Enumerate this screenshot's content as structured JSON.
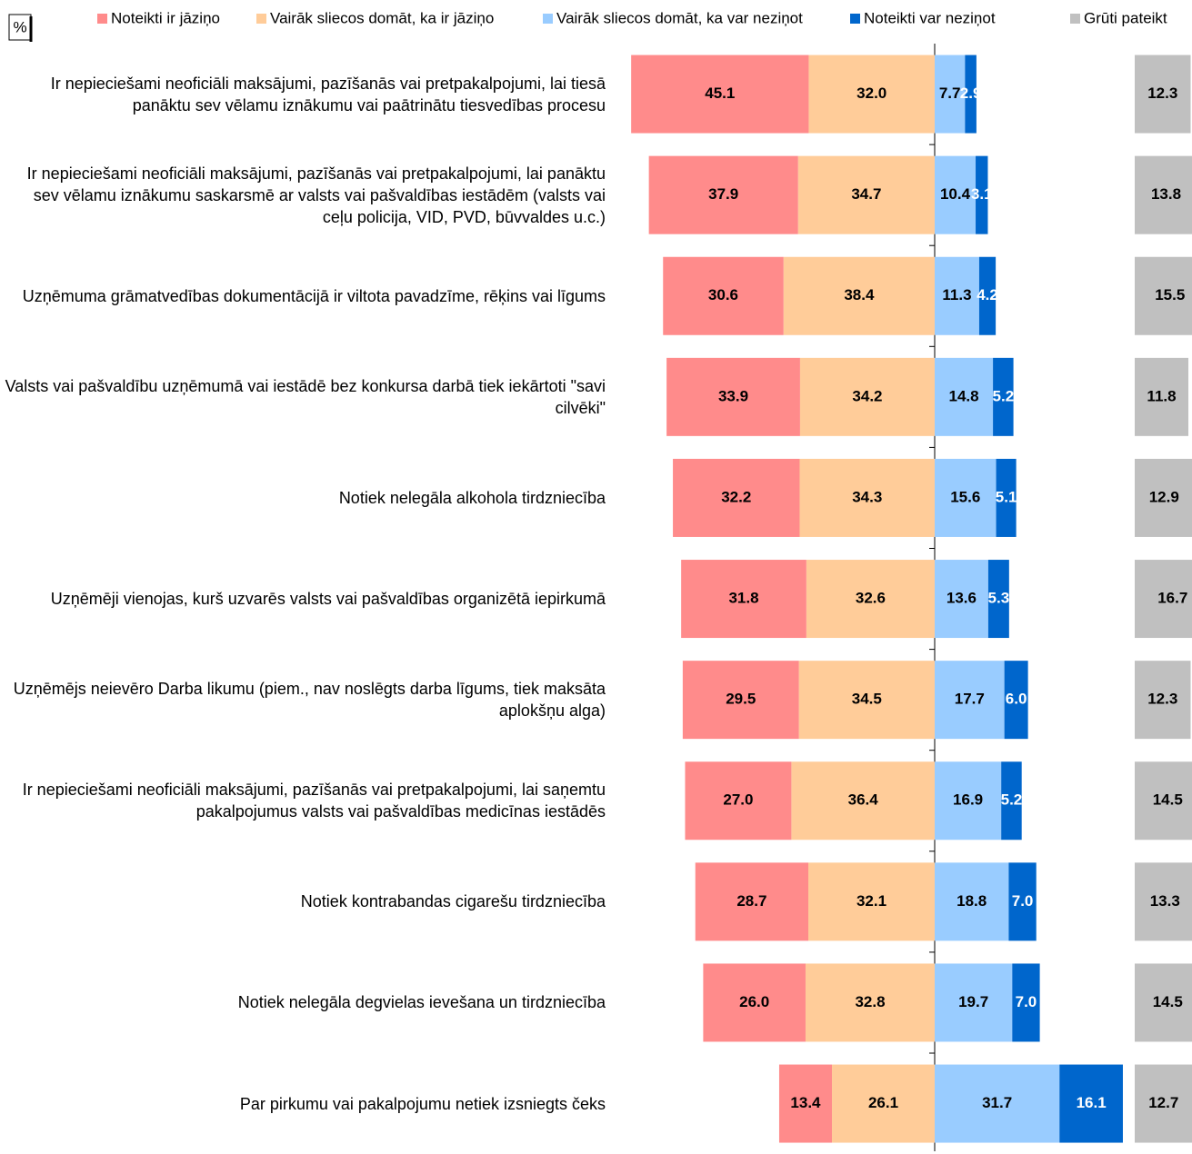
{
  "chart_data": {
    "type": "diverging-bar",
    "unit_label": "%",
    "categories": [
      "Ir nepieciešami neoficiāli maksājumi, pazīšanās vai pretpakalpojumi, lai tiesā panāktu sev vēlamu iznākumu vai paātrinātu tiesvedības procesu",
      "Ir nepieciešami neoficiāli maksājumi, pazīšanās vai pretpakalpojumi, lai panāktu sev vēlamu iznākumu saskarsmē ar valsts vai pašvaldības iestādēm (valsts vai ceļu policija, VID, PVD, būvvaldes u.c.)",
      "Uzņēmuma grāmatvedības dokumentācijā ir viltota pavadzīme, rēķins vai līgums",
      "Valsts vai pašvaldību uzņēmumā vai iestādē bez konkursa darbā tiek iekārtoti \"savi cilvēki\"",
      "Notiek nelegāla alkohola tirdzniecība",
      "Uzņēmēji vienojas, kurš uzvarēs valsts vai pašvaldības organizētā iepirkumā",
      "Uzņēmējs neievēro Darba likumu (piem., nav noslēgts darba līgums, tiek maksāta aplokšņu alga)",
      "Ir nepieciešami neoficiāli maksājumi, pazīšanās vai pretpakalpojumi, lai saņemtu pakalpojumus valsts vai pašvaldības medicīnas iestādēs",
      "Notiek kontrabandas cigarešu tirdzniecība",
      "Notiek nelegāla degvielas ievešana un tirdzniecība",
      "Par pirkumu vai pakalpojumu netiek izsniegts čeks"
    ],
    "series": [
      {
        "name": "Noteikti ir jāziņo",
        "color": "#ff8b8b",
        "values": [
          45.1,
          37.9,
          30.6,
          33.9,
          32.2,
          31.8,
          29.5,
          27.0,
          28.7,
          26.0,
          13.4
        ],
        "value_labels": [
          "45.1",
          "37.9",
          "30.6",
          "33.9",
          "32.2",
          "31.8",
          "29.5",
          "27.0",
          "28.7",
          "26.0",
          "13.4"
        ]
      },
      {
        "name": "Vairāk sliecos domāt, ka ir jāziņo",
        "color": "#ffcc99",
        "values": [
          32.0,
          34.7,
          38.4,
          34.2,
          34.3,
          32.6,
          34.5,
          36.4,
          32.1,
          32.8,
          26.1
        ],
        "value_labels": [
          "32.0",
          "34.7",
          "38.4",
          "34.2",
          "34.3",
          "32.6",
          "34.5",
          "36.4",
          "32.1",
          "32.8",
          "26.1"
        ]
      },
      {
        "name": "Vairāk sliecos domāt, ka var neziņot",
        "color": "#99ccff",
        "values": [
          7.7,
          10.4,
          11.3,
          14.8,
          15.6,
          13.6,
          17.7,
          16.9,
          18.8,
          19.7,
          31.7
        ],
        "value_labels": [
          "7.7",
          "10.4",
          "11.3",
          "14.8",
          "15.6",
          "13.6",
          "17.7",
          "16.9",
          "18.8",
          "19.7",
          "31.7"
        ]
      },
      {
        "name": "Noteikti var neziņot",
        "color": "#0066cc",
        "values": [
          2.9,
          3.1,
          4.2,
          5.2,
          5.1,
          5.3,
          6.0,
          5.2,
          7.0,
          7.0,
          16.1
        ],
        "value_labels": [
          "2.9",
          "3.1",
          "4.2",
          "5.2",
          "5.1",
          "5.3",
          "6.0",
          "5.2",
          "7.0",
          "7.0",
          "16.1"
        ]
      },
      {
        "name": "Grūti pateikt",
        "color": "#c0c0c0",
        "values": [
          12.3,
          13.8,
          15.5,
          11.8,
          12.9,
          16.7,
          12.3,
          14.5,
          13.3,
          14.5,
          12.7
        ],
        "value_labels": [
          "12.3",
          "13.8",
          "15.5",
          "11.8",
          "12.9",
          "16.7",
          "12.3",
          "14.5",
          "13.3",
          "14.5",
          "12.7"
        ]
      }
    ]
  }
}
